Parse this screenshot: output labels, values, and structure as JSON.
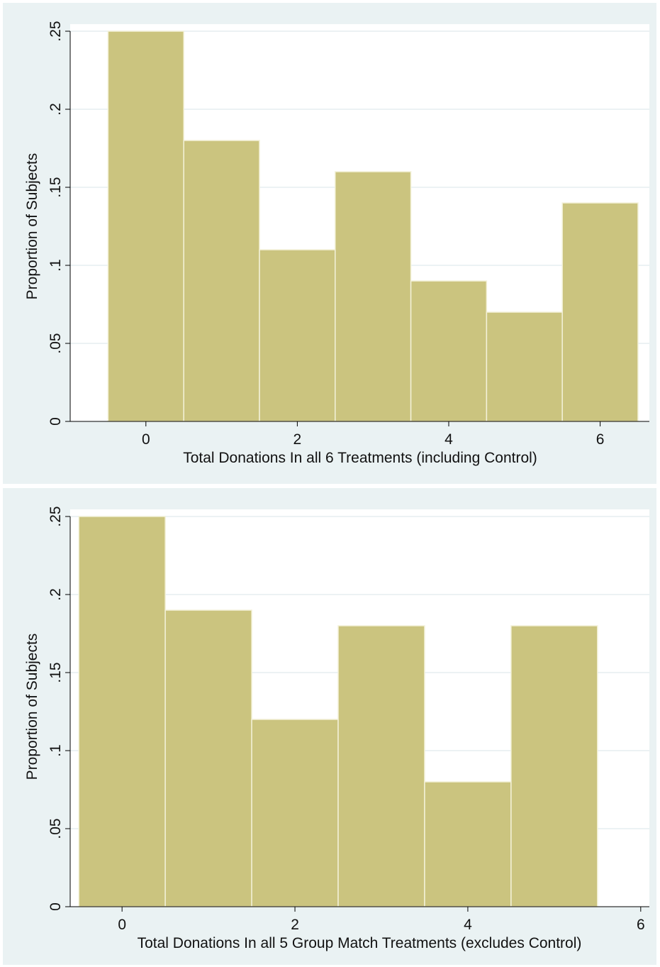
{
  "chart_data": [
    {
      "type": "bar",
      "title": "",
      "xlabel": "Total Donations In all 6 Treatments (including Control)",
      "ylabel": "Proportion of Subjects",
      "x": [
        0,
        1,
        2,
        3,
        4,
        5,
        6
      ],
      "values": [
        0.25,
        0.18,
        0.11,
        0.16,
        0.09,
        0.07,
        0.14
      ],
      "xlim": [
        -1,
        6.65
      ],
      "ylim": [
        0,
        0.25
      ],
      "xticks": [
        0,
        2,
        4,
        6
      ],
      "xtick_labels": [
        "0",
        "2",
        "4",
        "6"
      ],
      "yticks": [
        0,
        0.05,
        0.1,
        0.15,
        0.2,
        0.25
      ],
      "ytick_labels": [
        "0",
        ".05",
        ".1",
        ".15",
        ".2",
        ".25"
      ],
      "grid": true,
      "bar_color": "#cbc47f",
      "bar_edge_color": "#f3f1d8"
    },
    {
      "type": "bar",
      "title": "",
      "xlabel": "Total Donations In all 5 Group Match Treatments (excludes Control)",
      "ylabel": "Proportion of Subjects",
      "x": [
        0,
        1,
        2,
        3,
        4,
        5
      ],
      "values": [
        0.25,
        0.19,
        0.12,
        0.18,
        0.08,
        0.18
      ],
      "xlim": [
        -0.6,
        6.1
      ],
      "ylim": [
        0,
        0.25
      ],
      "xticks": [
        0,
        2,
        4,
        6
      ],
      "xtick_labels": [
        "0",
        "2",
        "4",
        "6"
      ],
      "yticks": [
        0,
        0.05,
        0.1,
        0.15,
        0.2,
        0.25
      ],
      "ytick_labels": [
        "0",
        ".05",
        ".1",
        ".15",
        ".2",
        ".25"
      ],
      "grid": true,
      "bar_color": "#cbc47f",
      "bar_edge_color": "#f3f1d8"
    }
  ]
}
